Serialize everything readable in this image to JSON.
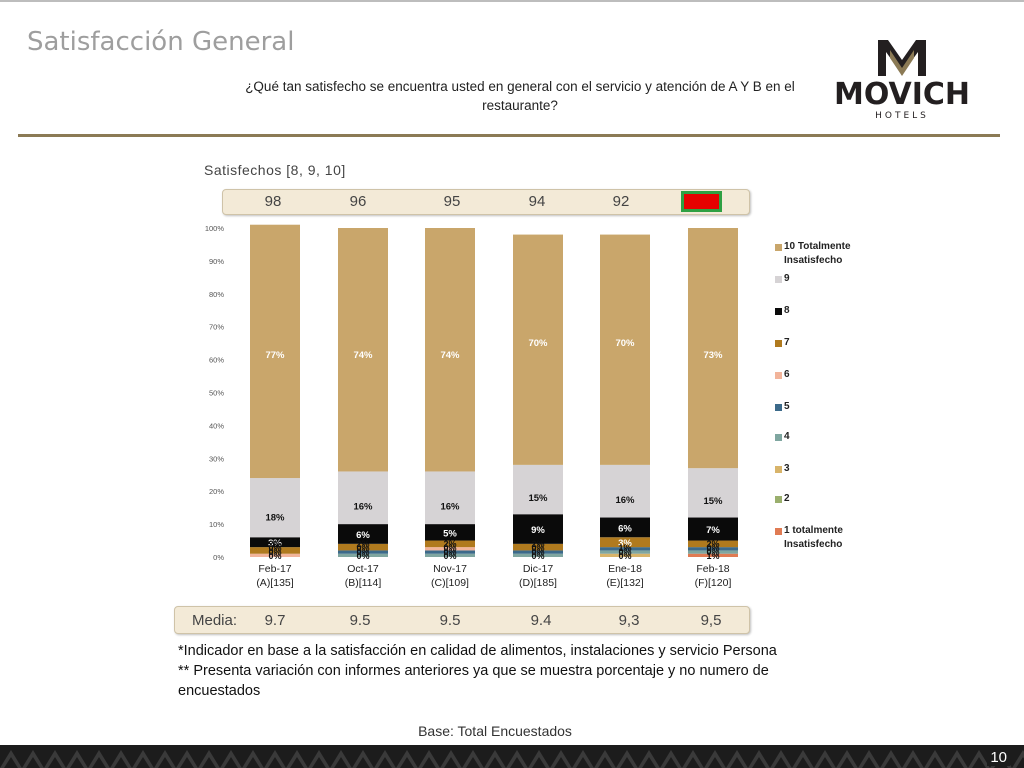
{
  "slide": {
    "title": "Satisfacción General",
    "question": "¿Qué tan satisfecho se encuentra usted en general con el servicio y atención de A Y B en el restaurante?",
    "logo": {
      "brand": "MOVICH",
      "sub": "HOTELS",
      "color": "#231f20",
      "accent": "#8b7a55"
    },
    "satisfied_title": "Satisfechos [8, 9, 10]",
    "satisfied_values": [
      "98",
      "96",
      "95",
      "94",
      "92",
      ""
    ],
    "media_label": "Media:",
    "media_values": [
      "9.7",
      "9.5",
      "9.5",
      "9.4",
      "9,3",
      "9,5"
    ],
    "notes": [
      "*Indicador en base a la satisfacción en calidad de alimentos, instalaciones y servicio Persona",
      "** Presenta variación con informes anteriores ya que se muestra porcentaje y no numero de encuestados"
    ],
    "base": "Base: Total Encuestados",
    "page_number": "10",
    "colors": {
      "rule": "#8b7a55",
      "box_fill": "#f3ead7",
      "flag_green": "#2ea043",
      "flag_red": "#e60000"
    }
  },
  "chart_data": {
    "type": "bar",
    "stacked": true,
    "percent": true,
    "categories": [
      [
        "Feb-17",
        "(A)[135]"
      ],
      [
        "Oct-17",
        "(B)[114]"
      ],
      [
        "Nov-17",
        "(C)[109]"
      ],
      [
        "Dic-17",
        "(D)[185]"
      ],
      [
        "Ene-18",
        "(E)[132]"
      ],
      [
        "Feb-18",
        "(F)[120]"
      ]
    ],
    "ylim": [
      0,
      100
    ],
    "yticks": [
      "0%",
      "10%",
      "20%",
      "30%",
      "40%",
      "50%",
      "60%",
      "70%",
      "80%",
      "90%",
      "100%"
    ],
    "legend_position": "right",
    "series": [
      {
        "name": "1 totalmente Insatisfecho",
        "color": "#e07b53",
        "values": [
          0,
          0,
          0,
          0,
          0,
          1
        ],
        "labels": [
          "0%",
          "0%",
          "0%",
          "0%",
          "0%",
          "1%"
        ]
      },
      {
        "name": "2",
        "color": "#9aaf6d",
        "values": [
          0,
          0,
          0,
          0,
          0,
          0
        ],
        "labels": [
          "0%",
          "0%",
          "0%",
          "0%",
          "0%",
          "0%"
        ]
      },
      {
        "name": "3",
        "color": "#d8b46a",
        "values": [
          0,
          0,
          0,
          0,
          1,
          0
        ],
        "labels": [
          "0%",
          "0%",
          "0%",
          "0%",
          "1%",
          "0%"
        ]
      },
      {
        "name": "4",
        "color": "#7fa6a0",
        "values": [
          0,
          1,
          1,
          1,
          1,
          1
        ],
        "labels": [
          "",
          "",
          "",
          "",
          "",
          ""
        ]
      },
      {
        "name": "5",
        "color": "#3c6a8a",
        "values": [
          0,
          1,
          1,
          1,
          1,
          1
        ],
        "labels": [
          "",
          "",
          "",
          "",
          "",
          ""
        ]
      },
      {
        "name": "6",
        "color": "#f2b49a",
        "values": [
          1,
          0,
          1,
          0,
          0,
          0
        ],
        "labels": [
          "",
          "",
          "",
          "",
          "",
          ""
        ]
      },
      {
        "name": "7",
        "color": "#b07a1e",
        "values": [
          2,
          2,
          2,
          2,
          3,
          2
        ],
        "labels": [
          "2%",
          "2%",
          "2%",
          "2%",
          "3%",
          "2%"
        ]
      },
      {
        "name": "8",
        "color": "#0a0a0a",
        "values": [
          3,
          6,
          5,
          9,
          6,
          7
        ],
        "labels": [
          "3%",
          "6%",
          "5%",
          "9%",
          "6%",
          "7%"
        ]
      },
      {
        "name": "9",
        "color": "#d6d3d5",
        "values": [
          18,
          16,
          16,
          15,
          16,
          15
        ],
        "labels": [
          "18%",
          "16%",
          "16%",
          "15%",
          "16%",
          "15%"
        ]
      },
      {
        "name": "10 Totalmente Insatisfecho",
        "color": "#c9a66b",
        "values": [
          77,
          74,
          74,
          70,
          70,
          73
        ],
        "labels": [
          "77%",
          "74%",
          "74%",
          "70%",
          "70%",
          "73%"
        ]
      }
    ]
  }
}
